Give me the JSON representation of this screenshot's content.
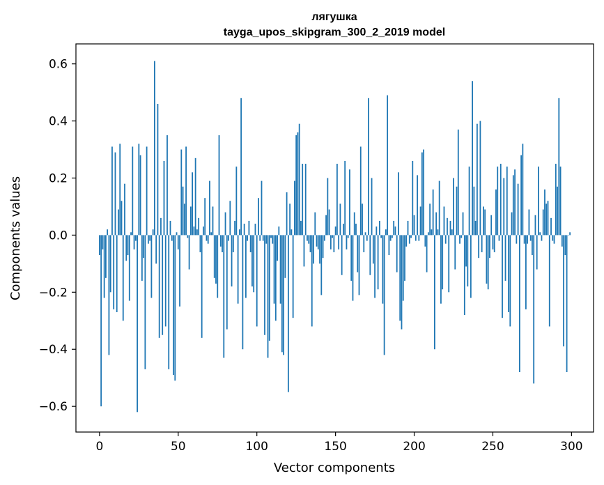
{
  "chart_data": {
    "type": "bar",
    "title_line1": "лягушка",
    "title_line2": "tayga_upos_skipgram_300_2_2019 model",
    "xlabel": "Vector components",
    "ylabel": "Components values",
    "xlim": [
      -15,
      314
    ],
    "ylim": [
      -0.69,
      0.67
    ],
    "xticks": [
      0,
      50,
      100,
      150,
      200,
      250,
      300
    ],
    "xtick_labels": [
      "0",
      "50",
      "100",
      "150",
      "200",
      "250",
      "300"
    ],
    "yticks": [
      -0.6,
      -0.4,
      -0.2,
      0.0,
      0.2,
      0.4,
      0.6
    ],
    "ytick_labels": [
      "−0.6",
      "−0.4",
      "−0.2",
      "0.0",
      "0.2",
      "0.4",
      "0.6"
    ],
    "bar_color": "#1f77b4",
    "values": [
      -0.07,
      -0.6,
      -0.05,
      -0.22,
      -0.15,
      0.02,
      -0.42,
      -0.2,
      0.31,
      -0.26,
      0.29,
      -0.27,
      0.09,
      0.32,
      0.12,
      -0.3,
      0.18,
      -0.09,
      -0.07,
      -0.23,
      0.01,
      0.31,
      -0.05,
      -0.02,
      -0.62,
      0.32,
      0.28,
      -0.16,
      -0.08,
      -0.47,
      0.31,
      -0.03,
      -0.02,
      -0.22,
      0.02,
      0.61,
      -0.1,
      0.46,
      -0.36,
      0.06,
      -0.35,
      0.26,
      -0.32,
      0.35,
      -0.47,
      0.05,
      -0.02,
      -0.49,
      -0.51,
      0.01,
      -0.05,
      -0.25,
      0.3,
      0.17,
      0.11,
      0.31,
      -0.01,
      -0.12,
      0.1,
      0.22,
      0.03,
      0.27,
      0.02,
      0.06,
      -0.06,
      -0.36,
      0.03,
      0.13,
      -0.02,
      -0.03,
      0.19,
      0.01,
      0.1,
      -0.15,
      -0.17,
      -0.22,
      0.35,
      -0.04,
      -0.06,
      -0.43,
      0.08,
      -0.33,
      -0.02,
      0.12,
      -0.18,
      -0.06,
      0.05,
      0.24,
      -0.24,
      0.02,
      0.48,
      -0.4,
      0.04,
      -0.22,
      -0.02,
      0.05,
      -0.06,
      -0.18,
      -0.2,
      0.04,
      -0.32,
      0.13,
      -0.02,
      0.19,
      -0.02,
      -0.35,
      -0.03,
      -0.43,
      -0.37,
      -0.01,
      -0.03,
      -0.24,
      -0.3,
      -0.09,
      0.03,
      -0.24,
      -0.41,
      -0.42,
      -0.15,
      0.15,
      -0.55,
      0.11,
      0.02,
      -0.29,
      0.19,
      0.35,
      0.36,
      0.39,
      0.05,
      0.25,
      -0.11,
      0.25,
      -0.02,
      -0.03,
      -0.06,
      -0.32,
      -0.1,
      0.08,
      -0.04,
      -0.05,
      -0.1,
      -0.21,
      -0.08,
      -0.02,
      0.07,
      0.2,
      0.09,
      -0.05,
      -0.01,
      -0.06,
      0.03,
      0.25,
      -0.05,
      0.11,
      -0.14,
      0.04,
      0.26,
      -0.05,
      -0.01,
      0.23,
      -0.16,
      -0.23,
      0.08,
      0.04,
      -0.13,
      -0.21,
      0.31,
      0.11,
      -0.06,
      0.01,
      -0.02,
      0.48,
      -0.14,
      0.2,
      -0.1,
      -0.22,
      0.03,
      -0.19,
      0.05,
      -0.01,
      -0.24,
      -0.42,
      0.02,
      0.49,
      -0.07,
      -0.02,
      -0.01,
      0.05,
      0.03,
      -0.13,
      0.22,
      -0.3,
      -0.33,
      -0.23,
      -0.16,
      -0.04,
      0.05,
      -0.03,
      -0.01,
      0.26,
      0.07,
      -0.02,
      0.21,
      -0.02,
      0.1,
      0.29,
      0.3,
      -0.04,
      -0.13,
      0.01,
      0.11,
      0.02,
      0.16,
      -0.4,
      0.08,
      0.02,
      0.19,
      -0.24,
      -0.19,
      0.1,
      -0.03,
      0.06,
      -0.2,
      0.05,
      0.02,
      0.2,
      -0.12,
      0.17,
      0.37,
      -0.03,
      -0.01,
      0.08,
      -0.28,
      -0.11,
      -0.18,
      0.24,
      -0.22,
      0.54,
      0.17,
      0.05,
      0.39,
      -0.08,
      0.4,
      -0.06,
      0.1,
      0.09,
      -0.17,
      -0.19,
      -0.08,
      0.07,
      -0.05,
      -0.06,
      0.16,
      0.24,
      -0.02,
      0.25,
      -0.29,
      0.2,
      -0.16,
      0.24,
      -0.27,
      -0.32,
      0.08,
      0.21,
      0.23,
      -0.03,
      0.18,
      -0.48,
      0.28,
      0.32,
      -0.03,
      -0.26,
      -0.03,
      0.09,
      -0.02,
      -0.07,
      -0.52,
      0.07,
      -0.12,
      0.24,
      0.01,
      -0.02,
      0.09,
      0.16,
      0.11,
      0.12,
      -0.32,
      0.06,
      -0.02,
      -0.03,
      0.25,
      0.17,
      0.48,
      0.24,
      -0.04,
      -0.39,
      -0.07,
      -0.48,
      0.0,
      0.01
    ]
  }
}
